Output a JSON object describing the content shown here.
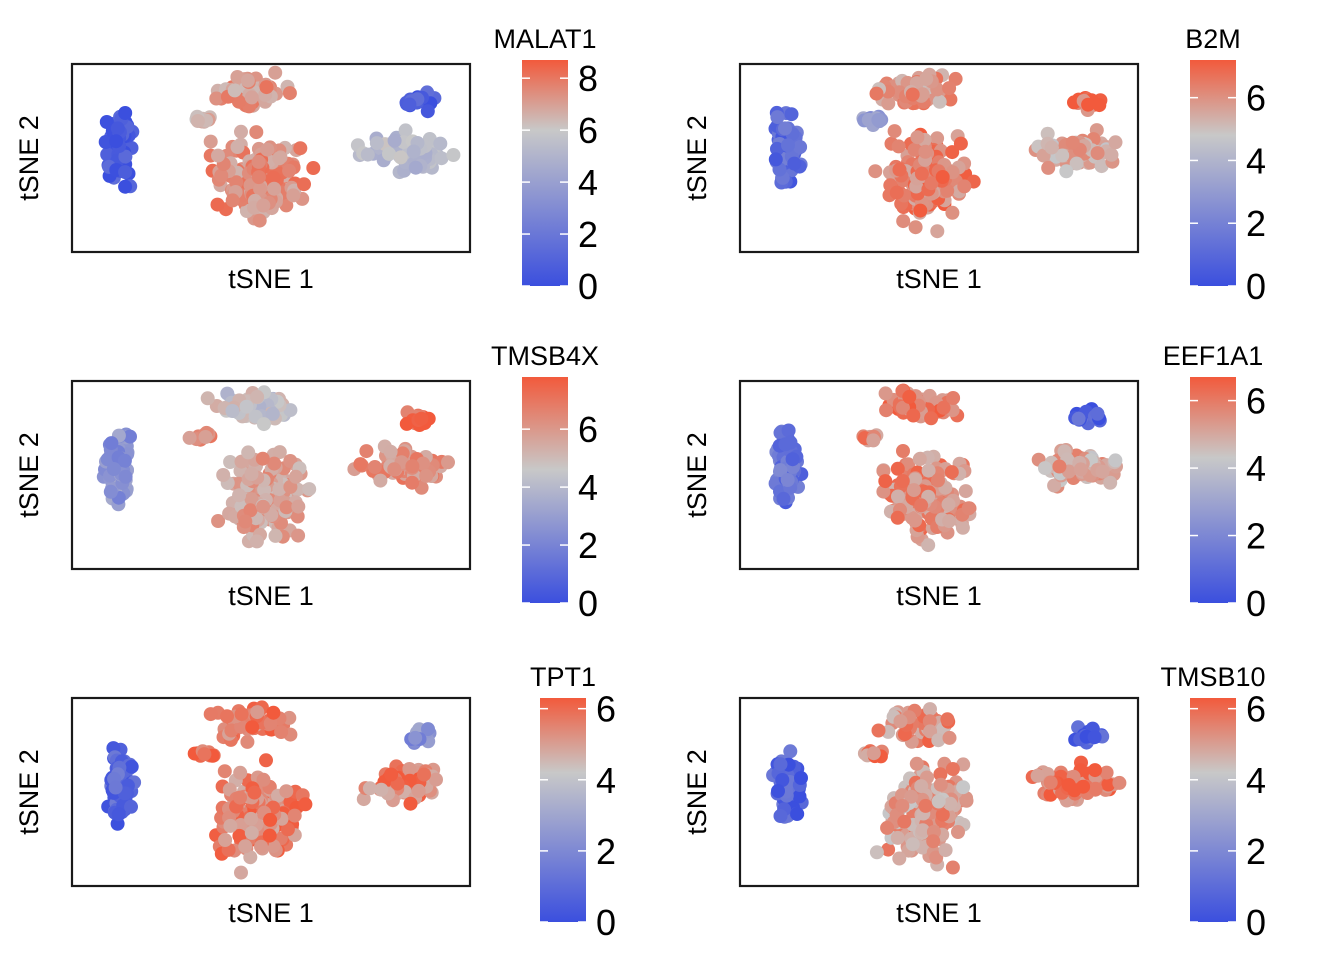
{
  "colors": {
    "low": "#3B4FDE",
    "mid": "#C8C8C8",
    "high": "#F25A3C",
    "frame": "#1a1a1a"
  },
  "chart_data": [
    {
      "type": "scatter",
      "gene": "MALAT1",
      "xlabel": "tSNE 1",
      "ylabel": "tSNE 2",
      "colorbar": {
        "title": "MALAT1",
        "min": 0,
        "max": 8.7,
        "mid": 6,
        "ticks": [
          0,
          2,
          4,
          6,
          8
        ]
      },
      "cluster_levels": {
        "small_left": 0.6,
        "top_center": 7.2,
        "bridge": 6.6,
        "main_center": 7.4,
        "right_group": 5.3,
        "right_tip": 0.8
      }
    },
    {
      "type": "scatter",
      "gene": "B2M",
      "xlabel": "tSNE 1",
      "ylabel": "tSNE 2",
      "colorbar": {
        "title": "B2M",
        "min": 0,
        "max": 7.2,
        "mid": 4.8,
        "ticks": [
          0,
          2,
          4,
          6
        ]
      },
      "cluster_levels": {
        "small_left": 1.1,
        "top_center": 5.9,
        "bridge": 3.2,
        "main_center": 6.3,
        "right_group": 5.4,
        "right_tip": 6.7
      }
    },
    {
      "type": "scatter",
      "gene": "TMSB4X",
      "xlabel": "tSNE 1",
      "ylabel": "tSNE 2",
      "colorbar": {
        "title": "TMSB4X",
        "min": 0,
        "max": 7.8,
        "mid": 4.6,
        "ticks": [
          0,
          2,
          4,
          6
        ]
      },
      "cluster_levels": {
        "small_left": 2.6,
        "top_center": 4.6,
        "bridge": 6.5,
        "main_center": 5.7,
        "right_group": 6.2,
        "right_tip": 7.4
      }
    },
    {
      "type": "scatter",
      "gene": "EEF1A1",
      "xlabel": "tSNE 1",
      "ylabel": "tSNE 2",
      "colorbar": {
        "title": "EEF1A1",
        "min": 0,
        "max": 6.7,
        "mid": 4.3,
        "ticks": [
          0,
          2,
          4,
          6
        ]
      },
      "cluster_levels": {
        "small_left": 1.3,
        "top_center": 6.0,
        "bridge": 5.8,
        "main_center": 5.6,
        "right_group": 5.0,
        "right_tip": 0.6
      }
    },
    {
      "type": "scatter",
      "gene": "TPT1",
      "xlabel": "tSNE 1",
      "ylabel": "tSNE 2",
      "colorbar": {
        "title": "TPT1",
        "min": 0,
        "max": 6.3,
        "mid": 4.2,
        "ticks": [
          0,
          2,
          4,
          6
        ]
      },
      "cluster_levels": {
        "small_left": 0.9,
        "top_center": 5.7,
        "bridge": 5.5,
        "main_center": 5.5,
        "right_group": 5.5,
        "right_tip": 2.2
      }
    },
    {
      "type": "scatter",
      "gene": "TMSB10",
      "xlabel": "tSNE 1",
      "ylabel": "tSNE 2",
      "colorbar": {
        "title": "TMSB10",
        "min": 0,
        "max": 6.3,
        "mid": 4.2,
        "ticks": [
          0,
          2,
          4,
          6
        ]
      },
      "cluster_levels": {
        "small_left": 0.6,
        "top_center": 5.3,
        "bridge": 5.6,
        "main_center": 5.0,
        "right_group": 5.8,
        "right_tip": 0.6
      }
    }
  ]
}
